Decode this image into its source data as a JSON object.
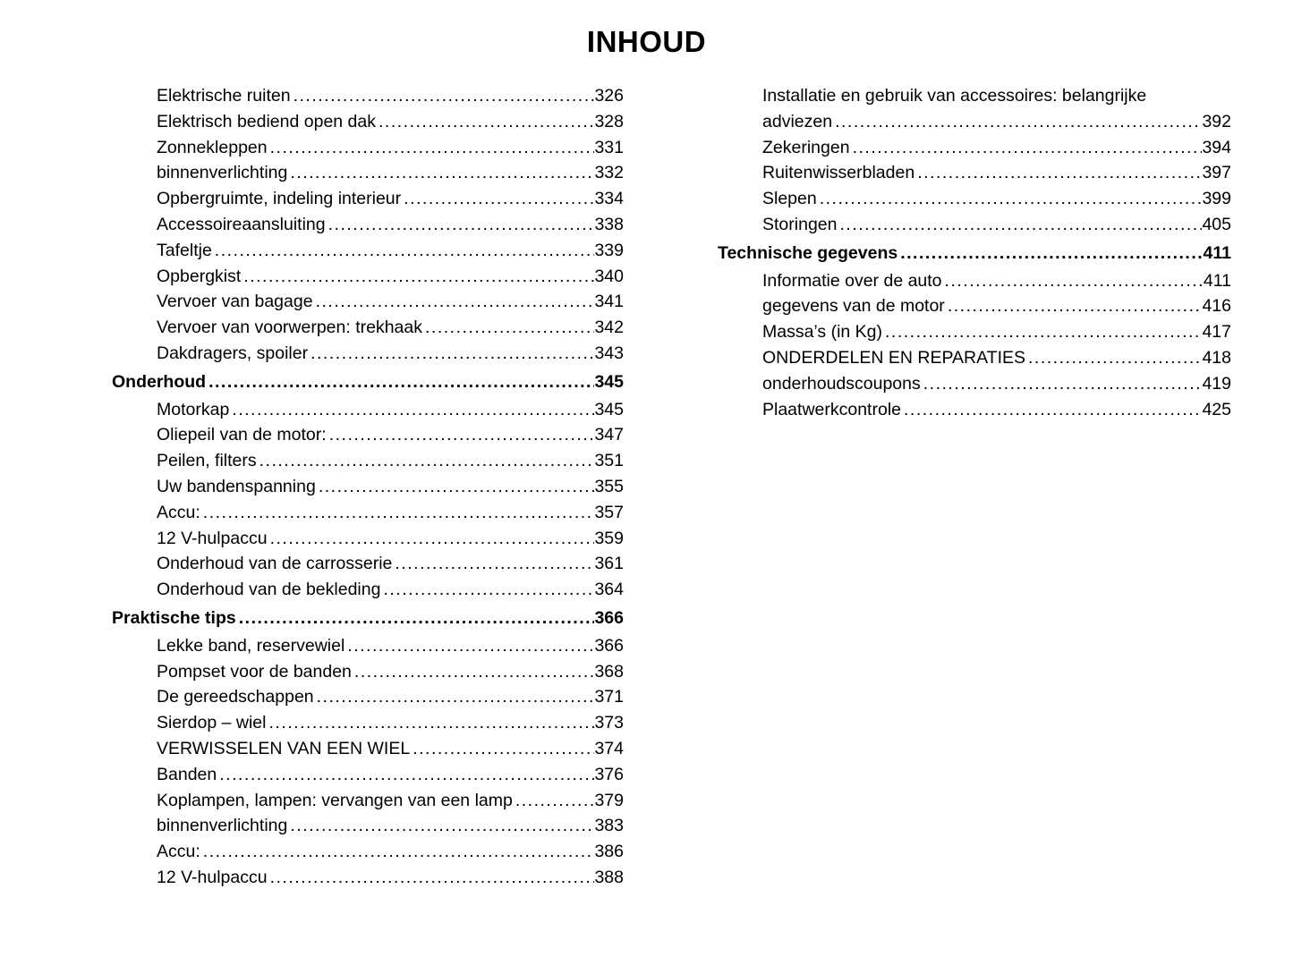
{
  "page": {
    "title": "INHOUD",
    "background_color": "#ffffff",
    "text_color": "#000000"
  },
  "toc": {
    "left_column": [
      {
        "label": "Elektrische ruiten",
        "page": "326"
      },
      {
        "label": "Elektrisch bediend open dak",
        "page": "328"
      },
      {
        "label": "Zonnekleppen",
        "page": "331"
      },
      {
        "label": "binnenverlichting",
        "page": "332"
      },
      {
        "label": "Opbergruimte, indeling interieur",
        "page": "334"
      },
      {
        "label": "Accessoireaansluiting",
        "page": "338"
      },
      {
        "label": "Tafeltje",
        "page": "339"
      },
      {
        "label": "Opbergkist",
        "page": "340"
      },
      {
        "label": "Vervoer van bagage",
        "page": "341"
      },
      {
        "label": "Vervoer van voorwerpen: trekhaak",
        "page": "342"
      },
      {
        "label": "Dakdragers, spoiler",
        "page": "343"
      },
      {
        "label": "Onderhoud",
        "page": "345",
        "top_level": true
      },
      {
        "label": "Motorkap",
        "page": "345"
      },
      {
        "label": "Oliepeil van de motor:",
        "page": "347"
      },
      {
        "label": "Peilen, filters",
        "page": "351"
      },
      {
        "label": "Uw bandenspanning",
        "page": "355"
      },
      {
        "label": "Accu:",
        "page": "357"
      },
      {
        "label": "12 V-hulpaccu",
        "page": "359"
      },
      {
        "label": "Onderhoud van de carrosserie",
        "page": "361"
      },
      {
        "label": "Onderhoud van de bekleding",
        "page": "364"
      },
      {
        "label": "Praktische tips",
        "page": "366",
        "top_level": true
      },
      {
        "label": "Lekke band, reservewiel",
        "page": "366"
      },
      {
        "label": "Pompset voor de banden",
        "page": "368"
      },
      {
        "label": "De gereedschappen",
        "page": "371"
      },
      {
        "label": "Sierdop – wiel",
        "page": "373"
      },
      {
        "label": "VERWISSELEN VAN EEN WIEL",
        "page": "374"
      },
      {
        "label": "Banden",
        "page": "376"
      },
      {
        "label": "Koplampen, lampen: vervangen van een lamp",
        "page": "379"
      },
      {
        "label": "binnenverlichting",
        "page": "383"
      },
      {
        "label": "Accu:",
        "page": "386"
      },
      {
        "label": "12 V-hulpaccu",
        "page": "388"
      }
    ],
    "right_column": [
      {
        "label": "Installatie en gebruik van accessoires: belangrijke",
        "page": "",
        "no_leader": true
      },
      {
        "label": "adviezen",
        "page": "392"
      },
      {
        "label": "Zekeringen",
        "page": "394"
      },
      {
        "label": "Ruitenwisserbladen",
        "page": "397"
      },
      {
        "label": "Slepen",
        "page": "399"
      },
      {
        "label": "Storingen",
        "page": "405"
      },
      {
        "label": "Technische gegevens",
        "page": "411",
        "top_level": true
      },
      {
        "label": "Informatie over de auto",
        "page": "411"
      },
      {
        "label": "gegevens van de motor",
        "page": "416"
      },
      {
        "label": "Massa’s (in Kg)",
        "page": "417"
      },
      {
        "label": "ONDERDELEN EN REPARATIES",
        "page": "418"
      },
      {
        "label": "onderhoudscoupons",
        "page": "419"
      },
      {
        "label": "Plaatwerkcontrole",
        "page": "425"
      }
    ]
  }
}
